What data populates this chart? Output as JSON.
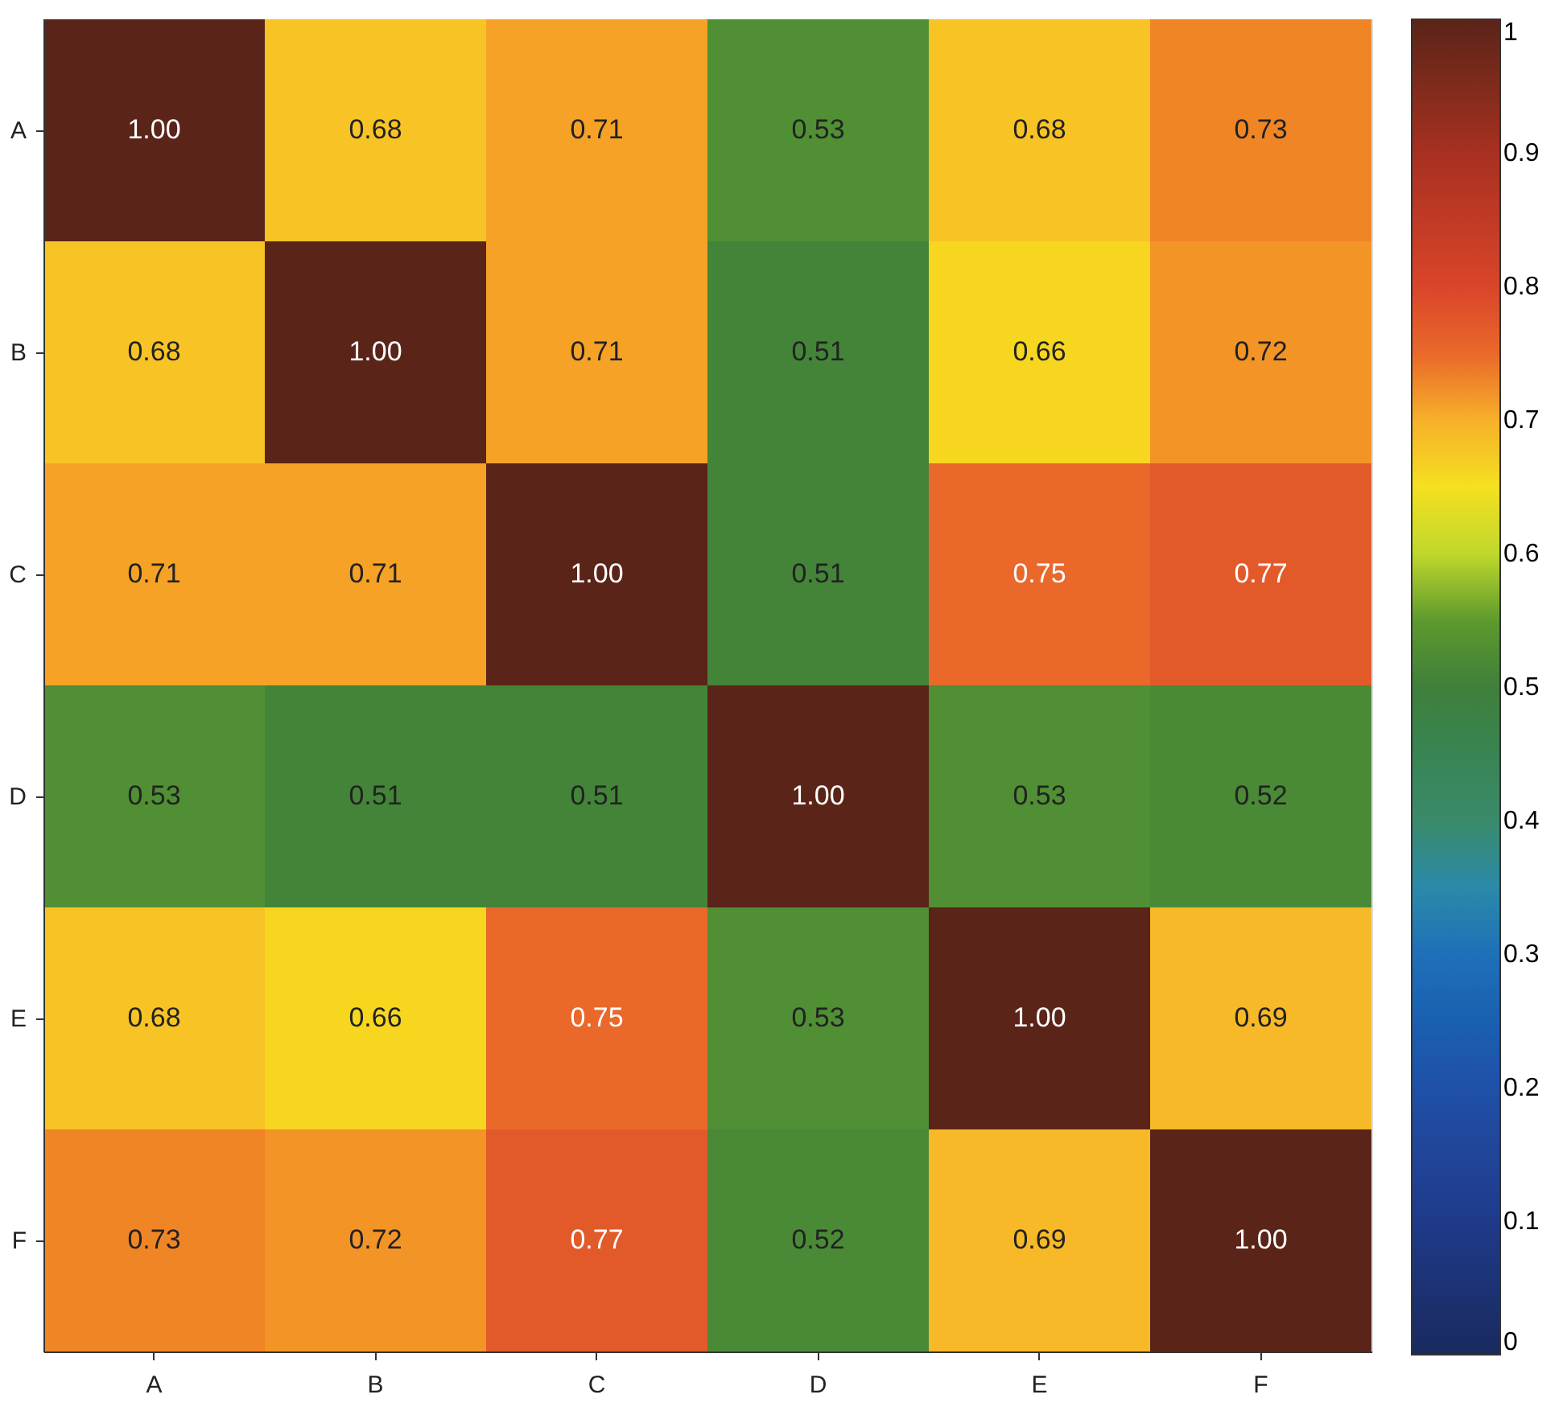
{
  "chart_data": {
    "type": "heatmap",
    "categories": [
      "A",
      "B",
      "C",
      "D",
      "E",
      "F"
    ],
    "y_categories": [
      "A",
      "B",
      "C",
      "D",
      "E",
      "F"
    ],
    "cells": [
      [
        1.0,
        0.68,
        0.71,
        0.53,
        0.68,
        0.73
      ],
      [
        0.68,
        1.0,
        0.71,
        0.51,
        0.66,
        0.72
      ],
      [
        0.71,
        0.71,
        1.0,
        0.51,
        0.75,
        0.77
      ],
      [
        0.53,
        0.51,
        0.51,
        1.0,
        0.53,
        0.52
      ],
      [
        0.68,
        0.66,
        0.75,
        0.53,
        1.0,
        0.69
      ],
      [
        0.73,
        0.72,
        0.77,
        0.52,
        0.69,
        1.0
      ]
    ],
    "cell_labels": [
      [
        "1.00",
        "0.68",
        "0.71",
        "0.53",
        "0.68",
        "0.73"
      ],
      [
        "0.68",
        "1.00",
        "0.71",
        "0.51",
        "0.66",
        "0.72"
      ],
      [
        "0.71",
        "0.71",
        "1.00",
        "0.51",
        "0.75",
        "0.77"
      ],
      [
        "0.53",
        "0.51",
        "0.51",
        "1.00",
        "0.53",
        "0.52"
      ],
      [
        "0.68",
        "0.66",
        "0.75",
        "0.53",
        "1.00",
        "0.69"
      ],
      [
        "0.73",
        "0.72",
        "0.77",
        "0.52",
        "0.69",
        "1.00"
      ]
    ],
    "clim": [
      0,
      1
    ],
    "cticks": [
      0,
      0.1,
      0.2,
      0.3,
      0.4,
      0.5,
      0.6,
      0.7,
      0.8,
      0.9,
      1
    ],
    "grid": false
  }
}
